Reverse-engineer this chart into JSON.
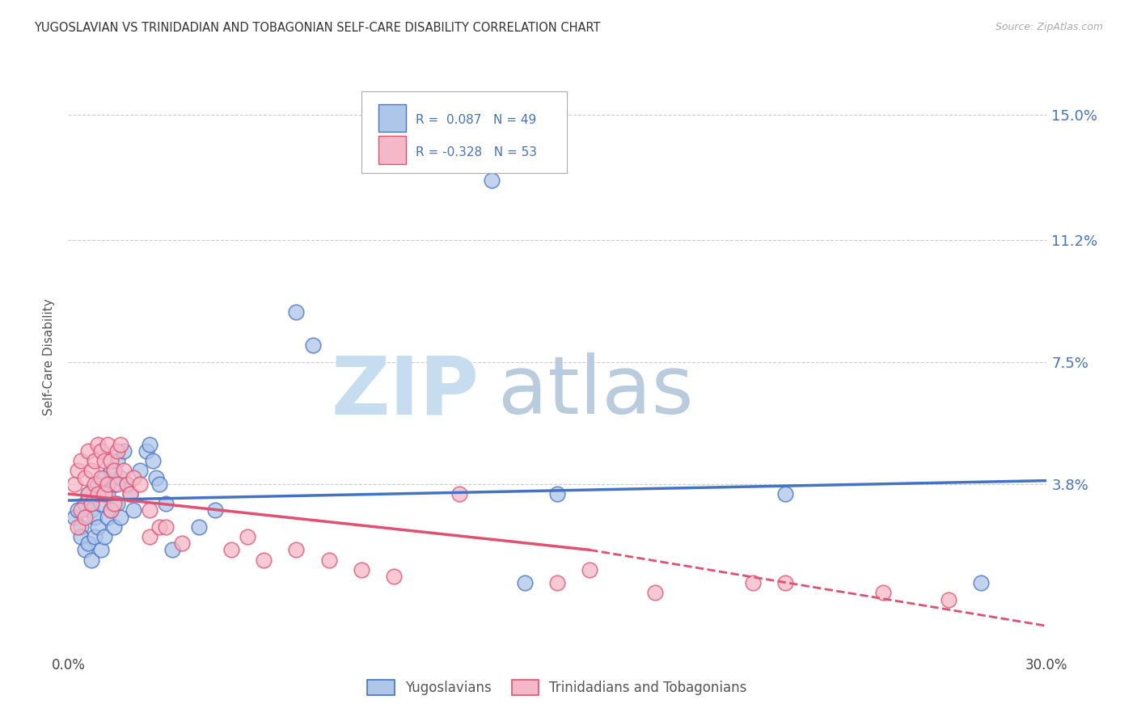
{
  "title": "YUGOSLAVIAN VS TRINIDADIAN AND TOBAGONIAN SELF-CARE DISABILITY CORRELATION CHART",
  "source": "Source: ZipAtlas.com",
  "ylabel": "Self-Care Disability",
  "ytick_labels": [
    "15.0%",
    "11.2%",
    "7.5%",
    "3.8%"
  ],
  "ytick_values": [
    0.15,
    0.112,
    0.075,
    0.038
  ],
  "xmin": 0.0,
  "xmax": 0.3,
  "ymin": -0.012,
  "ymax": 0.165,
  "legend_blue_R": "R =  0.087",
  "legend_blue_N": "N = 49",
  "legend_pink_R": "R = -0.328",
  "legend_pink_N": "N = 53",
  "legend_blue_label": "Yugoslavians",
  "legend_pink_label": "Trinidadians and Tobagonians",
  "blue_color": "#aec6e8",
  "blue_line_color": "#4472c4",
  "pink_color": "#f4b8c8",
  "pink_line_color": "#e05070",
  "blue_scatter": [
    [
      0.002,
      0.028
    ],
    [
      0.003,
      0.03
    ],
    [
      0.004,
      0.025
    ],
    [
      0.004,
      0.022
    ],
    [
      0.005,
      0.032
    ],
    [
      0.005,
      0.018
    ],
    [
      0.006,
      0.035
    ],
    [
      0.006,
      0.02
    ],
    [
      0.007,
      0.03
    ],
    [
      0.007,
      0.015
    ],
    [
      0.008,
      0.028
    ],
    [
      0.008,
      0.022
    ],
    [
      0.009,
      0.038
    ],
    [
      0.009,
      0.025
    ],
    [
      0.01,
      0.032
    ],
    [
      0.01,
      0.018
    ],
    [
      0.011,
      0.04
    ],
    [
      0.011,
      0.022
    ],
    [
      0.012,
      0.035
    ],
    [
      0.012,
      0.028
    ],
    [
      0.013,
      0.042
    ],
    [
      0.013,
      0.03
    ],
    [
      0.014,
      0.038
    ],
    [
      0.014,
      0.025
    ],
    [
      0.015,
      0.045
    ],
    [
      0.015,
      0.032
    ],
    [
      0.016,
      0.04
    ],
    [
      0.016,
      0.028
    ],
    [
      0.017,
      0.048
    ],
    [
      0.018,
      0.038
    ],
    [
      0.019,
      0.035
    ],
    [
      0.02,
      0.03
    ],
    [
      0.022,
      0.042
    ],
    [
      0.024,
      0.048
    ],
    [
      0.025,
      0.05
    ],
    [
      0.026,
      0.045
    ],
    [
      0.027,
      0.04
    ],
    [
      0.028,
      0.038
    ],
    [
      0.03,
      0.032
    ],
    [
      0.032,
      0.018
    ],
    [
      0.04,
      0.025
    ],
    [
      0.045,
      0.03
    ],
    [
      0.07,
      0.09
    ],
    [
      0.075,
      0.08
    ],
    [
      0.13,
      0.13
    ],
    [
      0.15,
      0.035
    ],
    [
      0.22,
      0.035
    ],
    [
      0.14,
      0.008
    ],
    [
      0.28,
      0.008
    ]
  ],
  "pink_scatter": [
    [
      0.002,
      0.038
    ],
    [
      0.003,
      0.042
    ],
    [
      0.003,
      0.025
    ],
    [
      0.004,
      0.045
    ],
    [
      0.004,
      0.03
    ],
    [
      0.005,
      0.04
    ],
    [
      0.005,
      0.028
    ],
    [
      0.006,
      0.048
    ],
    [
      0.006,
      0.035
    ],
    [
      0.007,
      0.042
    ],
    [
      0.007,
      0.032
    ],
    [
      0.008,
      0.045
    ],
    [
      0.008,
      0.038
    ],
    [
      0.009,
      0.05
    ],
    [
      0.009,
      0.035
    ],
    [
      0.01,
      0.048
    ],
    [
      0.01,
      0.04
    ],
    [
      0.011,
      0.045
    ],
    [
      0.011,
      0.035
    ],
    [
      0.012,
      0.05
    ],
    [
      0.012,
      0.038
    ],
    [
      0.013,
      0.045
    ],
    [
      0.013,
      0.03
    ],
    [
      0.014,
      0.042
    ],
    [
      0.014,
      0.032
    ],
    [
      0.015,
      0.048
    ],
    [
      0.015,
      0.038
    ],
    [
      0.016,
      0.05
    ],
    [
      0.017,
      0.042
    ],
    [
      0.018,
      0.038
    ],
    [
      0.019,
      0.035
    ],
    [
      0.02,
      0.04
    ],
    [
      0.022,
      0.038
    ],
    [
      0.025,
      0.03
    ],
    [
      0.025,
      0.022
    ],
    [
      0.028,
      0.025
    ],
    [
      0.03,
      0.025
    ],
    [
      0.035,
      0.02
    ],
    [
      0.05,
      0.018
    ],
    [
      0.055,
      0.022
    ],
    [
      0.06,
      0.015
    ],
    [
      0.07,
      0.018
    ],
    [
      0.08,
      0.015
    ],
    [
      0.09,
      0.012
    ],
    [
      0.1,
      0.01
    ],
    [
      0.12,
      0.035
    ],
    [
      0.15,
      0.008
    ],
    [
      0.16,
      0.012
    ],
    [
      0.18,
      0.005
    ],
    [
      0.21,
      0.008
    ],
    [
      0.22,
      0.008
    ],
    [
      0.25,
      0.005
    ],
    [
      0.27,
      0.003
    ]
  ],
  "grid_color": "#cccccc",
  "watermark_zip_color": "#c8dff0",
  "watermark_atlas_color": "#b8c8d8",
  "background_color": "#ffffff"
}
